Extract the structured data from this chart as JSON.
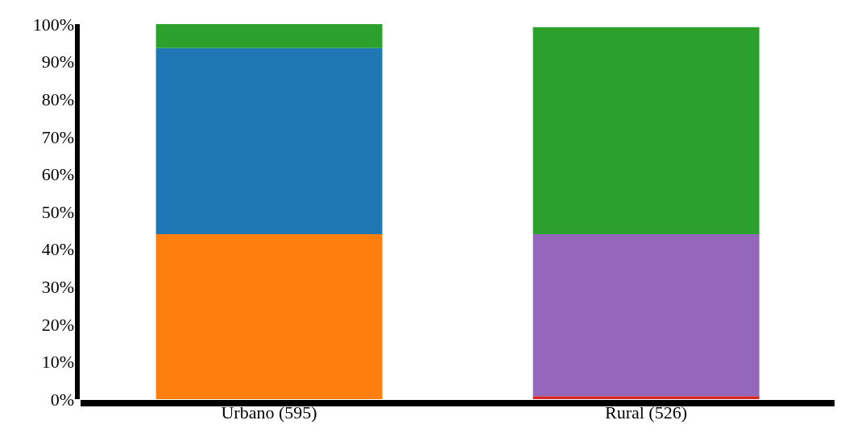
{
  "chart_data": {
    "type": "bar",
    "stacked": true,
    "categories": [
      "Urbano (595)",
      "Rural (526)"
    ],
    "series": [
      {
        "color": "#d62728",
        "values": [
          null,
          0.8
        ]
      },
      {
        "color": "#ff7f0e",
        "values": [
          44,
          null
        ]
      },
      {
        "color": "#9467bd",
        "values": [
          null,
          43.2
        ]
      },
      {
        "color": "#1f77b4",
        "values": [
          49.6,
          null
        ]
      },
      {
        "color": "#2ca02c",
        "values": [
          6.4,
          55.2
        ]
      }
    ],
    "ylim": [
      0,
      100
    ],
    "yticks": [
      {
        "value": 0,
        "label": "0%"
      },
      {
        "value": 10,
        "label": "10%"
      },
      {
        "value": 20,
        "label": "20%"
      },
      {
        "value": 30,
        "label": "30%"
      },
      {
        "value": 40,
        "label": "40%"
      },
      {
        "value": 50,
        "label": "50%"
      },
      {
        "value": 60,
        "label": "60%"
      },
      {
        "value": 70,
        "label": "70%"
      },
      {
        "value": 80,
        "label": "80%"
      },
      {
        "value": 90,
        "label": "90%"
      },
      {
        "value": 100,
        "label": "100%"
      }
    ],
    "grid": false,
    "legend": false
  }
}
